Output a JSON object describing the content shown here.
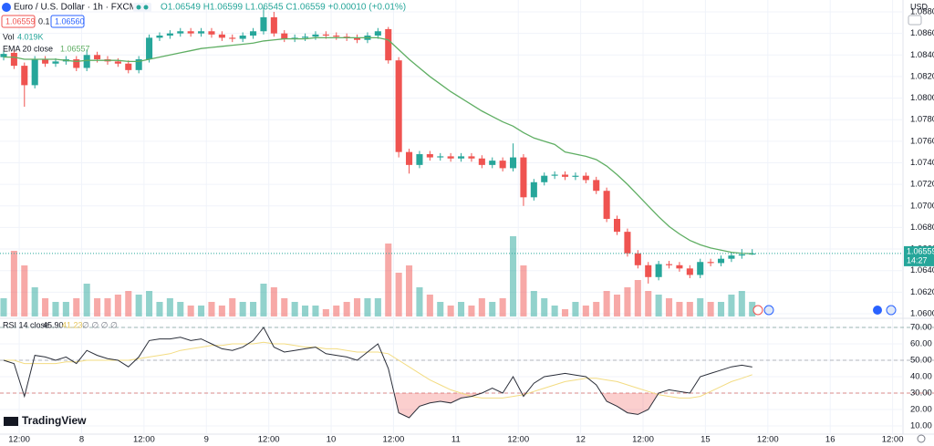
{
  "header": {
    "symbol": "Euro / U.S. Dollar · 1h · FXCM",
    "ohlc": "O1.06549 H1.06599 L1.06545 C1.06559 +0.00010 (+0.01%)",
    "bid": "1.06559",
    "spread": "0.1",
    "ask": "1.06560",
    "vol_label": "Vol",
    "vol_value": "4.019K",
    "rsi_label": "RSI 14 close",
    "rsi_value": "45.90",
    "rsi_ma_value": "41.23",
    "rsi_extra": "∅ ∅ ∅ ∅",
    "currency": "USD",
    "countdown": "14:27",
    "logo": "TradingView"
  },
  "chart_data": [
    {
      "type": "candlestick",
      "up_color": "#26a69a",
      "down_color": "#ef5350",
      "grid": true,
      "xlim": [
        -0.7,
        173
      ],
      "ylim": [
        1.05966,
        1.0891
      ],
      "xticks": [
        {
          "value": 3,
          "label": "12:00"
        },
        {
          "value": 15,
          "label": "8"
        },
        {
          "value": 27,
          "label": "12:00"
        },
        {
          "value": 39,
          "label": "9"
        },
        {
          "value": 51,
          "label": "12:00"
        },
        {
          "value": 63,
          "label": "10"
        },
        {
          "value": 75,
          "label": "12:00"
        },
        {
          "value": 87,
          "label": "11"
        },
        {
          "value": 99,
          "label": "12:00"
        },
        {
          "value": 111,
          "label": "12"
        },
        {
          "value": 123,
          "label": "12:00"
        },
        {
          "value": 135,
          "label": "15"
        },
        {
          "value": 147,
          "label": "12:00"
        },
        {
          "value": 159,
          "label": "16"
        },
        {
          "value": 171,
          "label": "12:00"
        }
      ],
      "yticks": [
        {
          "value": 1.06,
          "label": "1.06000"
        },
        {
          "value": 1.062,
          "label": "1.06200"
        },
        {
          "value": 1.064,
          "label": "1.06400"
        },
        {
          "value": 1.066,
          "label": "1.06600"
        },
        {
          "value": 1.068,
          "label": "1.06800"
        },
        {
          "value": 1.07,
          "label": "1.07000"
        },
        {
          "value": 1.072,
          "label": "1.07200"
        },
        {
          "value": 1.074,
          "label": "1.07400"
        },
        {
          "value": 1.076,
          "label": "1.07600"
        },
        {
          "value": 1.078,
          "label": "1.07800"
        },
        {
          "value": 1.08,
          "label": "1.08000"
        },
        {
          "value": 1.082,
          "label": "1.08200"
        },
        {
          "value": 1.084,
          "label": "1.08400"
        },
        {
          "value": 1.086,
          "label": "1.08600"
        },
        {
          "value": 1.088,
          "label": "1.08800"
        }
      ],
      "last_price": 1.06559,
      "x": [
        0,
        2,
        4,
        6,
        8,
        10,
        12,
        14,
        16,
        18,
        20,
        22,
        24,
        26,
        28,
        30,
        32,
        34,
        36,
        38,
        40,
        42,
        44,
        46,
        48,
        50,
        52,
        54,
        56,
        58,
        60,
        62,
        64,
        66,
        68,
        70,
        72,
        74,
        76,
        78,
        80,
        82,
        84,
        86,
        88,
        90,
        92,
        94,
        96,
        98,
        100,
        102,
        104,
        106,
        108,
        110,
        112,
        114,
        116,
        118,
        120,
        122,
        124,
        126,
        128,
        130,
        132,
        134,
        136,
        138,
        140,
        142,
        144
      ],
      "open": [
        1.0838,
        1.0842,
        1.083,
        1.0812,
        1.0836,
        1.0832,
        1.0834,
        1.0836,
        1.0828,
        1.084,
        1.0836,
        1.0834,
        1.0832,
        1.0826,
        1.0836,
        1.0856,
        1.0858,
        1.086,
        1.0862,
        1.086,
        1.0862,
        1.0859,
        1.0856,
        1.0855,
        1.0858,
        1.0862,
        1.0875,
        1.086,
        1.0855,
        1.0856,
        1.0857,
        1.0859,
        1.0858,
        1.0857,
        1.0856,
        1.0854,
        1.0858,
        1.0864,
        1.0835,
        1.075,
        1.0738,
        1.0748,
        1.0745,
        1.0746,
        1.0744,
        1.0746,
        1.0744,
        1.0738,
        1.0742,
        1.0735,
        1.0745,
        1.0708,
        1.0722,
        1.0728,
        1.0729,
        1.0727,
        1.0728,
        1.0724,
        1.0714,
        1.0688,
        1.0676,
        1.0656,
        1.0645,
        1.0634,
        1.0646,
        1.0645,
        1.0642,
        1.0636,
        1.0648,
        1.0647,
        1.0651,
        1.0654,
        1.06549
      ],
      "high": [
        1.0844,
        1.0845,
        1.0833,
        1.0839,
        1.0839,
        1.0837,
        1.0839,
        1.0839,
        1.0845,
        1.0843,
        1.0839,
        1.0837,
        1.0835,
        1.0839,
        1.0859,
        1.0861,
        1.0863,
        1.0865,
        1.0865,
        1.0865,
        1.0865,
        1.0862,
        1.0859,
        1.0861,
        1.0865,
        1.0884,
        1.088,
        1.0863,
        1.0859,
        1.086,
        1.0862,
        1.0862,
        1.0861,
        1.086,
        1.0859,
        1.0861,
        1.0865,
        1.0866,
        1.0838,
        1.0753,
        1.0751,
        1.0751,
        1.0749,
        1.0749,
        1.0749,
        1.0749,
        1.0747,
        1.0745,
        1.0745,
        1.0758,
        1.0748,
        1.0725,
        1.0731,
        1.0732,
        1.0732,
        1.0731,
        1.0731,
        1.0727,
        1.0717,
        1.0691,
        1.0679,
        1.0659,
        1.0648,
        1.0649,
        1.0649,
        1.0648,
        1.0645,
        1.0651,
        1.0651,
        1.0654,
        1.0657,
        1.066,
        1.06599
      ],
      "low": [
        1.0835,
        1.0827,
        1.0792,
        1.0809,
        1.0829,
        1.0829,
        1.0831,
        1.0825,
        1.0825,
        1.0833,
        1.0831,
        1.0829,
        1.0823,
        1.0823,
        1.0833,
        1.0853,
        1.0855,
        1.0857,
        1.0857,
        1.0857,
        1.0856,
        1.0853,
        1.0852,
        1.0852,
        1.0855,
        1.0859,
        1.0857,
        1.0852,
        1.0852,
        1.0853,
        1.0854,
        1.0855,
        1.0854,
        1.0853,
        1.0851,
        1.0851,
        1.0855,
        1.0832,
        1.0745,
        1.073,
        1.0735,
        1.0742,
        1.0742,
        1.0741,
        1.0741,
        1.0741,
        1.0735,
        1.0735,
        1.0732,
        1.0732,
        1.07,
        1.0705,
        1.0719,
        1.0725,
        1.0724,
        1.0724,
        1.0721,
        1.0711,
        1.0685,
        1.0673,
        1.0653,
        1.0642,
        1.0628,
        1.0631,
        1.0642,
        1.0639,
        1.0633,
        1.0633,
        1.0644,
        1.0644,
        1.0648,
        1.0651,
        1.06545
      ],
      "close": [
        1.0841,
        1.083,
        1.0812,
        1.0836,
        1.0832,
        1.0834,
        1.0836,
        1.0828,
        1.084,
        1.0836,
        1.0834,
        1.0832,
        1.0826,
        1.0836,
        1.0856,
        1.0858,
        1.086,
        1.0862,
        1.086,
        1.0862,
        1.0859,
        1.0856,
        1.0855,
        1.0858,
        1.0862,
        1.0875,
        1.086,
        1.0855,
        1.0856,
        1.0857,
        1.0859,
        1.0858,
        1.0857,
        1.0856,
        1.0854,
        1.0858,
        1.0862,
        1.0835,
        1.075,
        1.0738,
        1.0748,
        1.0745,
        1.0746,
        1.0744,
        1.0746,
        1.0744,
        1.0738,
        1.0742,
        1.0735,
        1.0745,
        1.0708,
        1.0722,
        1.0728,
        1.0729,
        1.0727,
        1.0728,
        1.0724,
        1.0714,
        1.0688,
        1.0676,
        1.0656,
        1.0645,
        1.0634,
        1.0646,
        1.0645,
        1.0642,
        1.0636,
        1.0648,
        1.0647,
        1.0651,
        1.0654,
        1.0655,
        1.06559
      ],
      "series": [
        {
          "name": "EMA 20 close",
          "color": "#5fae63",
          "values": [
            1.0838,
            1.0838,
            1.0836,
            1.0836,
            1.0836,
            1.0836,
            1.0835,
            1.0834,
            1.0835,
            1.0835,
            1.0835,
            1.0835,
            1.0834,
            1.0834,
            1.0836,
            1.0838,
            1.084,
            1.0842,
            1.0844,
            1.0846,
            1.0847,
            1.0848,
            1.0849,
            1.085,
            1.0851,
            1.0853,
            1.0854,
            1.0855,
            1.0855,
            1.0855,
            1.0856,
            1.0856,
            1.0856,
            1.0856,
            1.0856,
            1.0856,
            1.0856,
            1.0854,
            1.0845,
            1.0836,
            1.0828,
            1.082,
            1.0813,
            1.0806,
            1.08,
            1.0794,
            1.0788,
            1.0783,
            1.0778,
            1.0774,
            1.0768,
            1.0763,
            1.076,
            1.0757,
            1.075,
            1.0748,
            1.0746,
            1.0743,
            1.0737,
            1.0729,
            1.072,
            1.071,
            1.07,
            1.069,
            1.0681,
            1.0674,
            1.0668,
            1.0664,
            1.0661,
            1.0659,
            1.0657,
            1.0656,
            1.06557
          ]
        }
      ]
    },
    {
      "type": "bar",
      "name": "Vol",
      "ylim": [
        0,
        25
      ],
      "up_color": "rgba(38,166,154,0.5)",
      "down_color": "rgba(239,83,80,0.5)",
      "values": [
        5,
        18,
        14,
        8,
        5,
        4,
        4,
        5,
        9,
        5,
        5,
        6,
        7,
        6,
        7,
        4,
        5,
        4,
        3,
        3,
        4,
        3,
        5,
        4,
        4,
        9,
        8,
        5,
        4,
        3,
        3,
        2,
        3,
        4,
        5,
        5,
        5,
        20,
        12,
        14,
        8,
        6,
        4,
        3,
        4,
        3,
        5,
        4,
        5,
        22,
        14,
        7,
        5,
        3,
        2,
        4,
        3,
        4,
        7,
        6,
        8,
        10,
        7,
        6,
        5,
        4,
        4,
        5,
        4,
        4,
        6,
        7,
        4.019
      ]
    },
    {
      "type": "line",
      "ylim": [
        5,
        75
      ],
      "yticks": [
        {
          "value": 10,
          "label": "10.00"
        },
        {
          "value": 20,
          "label": "20.00"
        },
        {
          "value": 30,
          "label": "30.00"
        },
        {
          "value": 40,
          "label": "40.00"
        },
        {
          "value": 50,
          "label": "50.00"
        },
        {
          "value": 60,
          "label": "60.00"
        },
        {
          "value": 70,
          "label": "70.00"
        }
      ],
      "bands": [
        {
          "value": 70,
          "color": "#9bb5b3"
        },
        {
          "value": 50,
          "color": "#b2b5be"
        },
        {
          "value": 30,
          "color": "#d88a88"
        }
      ],
      "oversold_fill": "rgba(239,83,80,0.28)",
      "series": [
        {
          "name": "RSI",
          "color": "#2a2e39",
          "values": [
            50,
            48,
            28,
            53,
            52,
            50,
            52,
            48,
            56,
            53,
            51,
            50,
            46,
            52,
            62,
            63,
            63,
            64,
            62,
            63,
            60,
            57,
            56,
            58,
            62,
            70,
            58,
            55,
            56,
            57,
            58,
            54,
            53,
            52,
            50,
            55,
            60,
            45,
            18,
            15,
            22,
            24,
            25,
            24,
            27,
            28,
            30,
            33,
            30,
            40,
            28,
            36,
            40,
            41,
            42,
            41,
            40,
            35,
            25,
            22,
            18,
            17,
            20,
            30,
            32,
            31,
            30,
            40,
            42,
            44,
            46,
            47,
            45.9
          ]
        },
        {
          "name": "RSI MA",
          "color": "#f3dc82",
          "values": [
            50,
            50,
            48,
            48,
            48,
            48,
            49,
            49,
            50,
            50,
            50,
            50,
            50,
            51,
            52,
            53,
            54,
            56,
            57,
            58,
            59,
            59,
            60,
            60,
            60,
            61,
            60,
            60,
            59,
            58,
            58,
            57,
            57,
            56,
            55,
            55,
            55,
            54,
            50,
            46,
            42,
            38,
            35,
            32,
            30,
            28,
            27,
            27,
            27,
            28,
            29,
            31,
            33,
            35,
            37,
            38,
            39,
            39,
            38,
            37,
            35,
            33,
            31,
            29,
            28,
            27,
            27,
            28,
            31,
            34,
            37,
            39,
            41.23
          ]
        }
      ]
    }
  ]
}
